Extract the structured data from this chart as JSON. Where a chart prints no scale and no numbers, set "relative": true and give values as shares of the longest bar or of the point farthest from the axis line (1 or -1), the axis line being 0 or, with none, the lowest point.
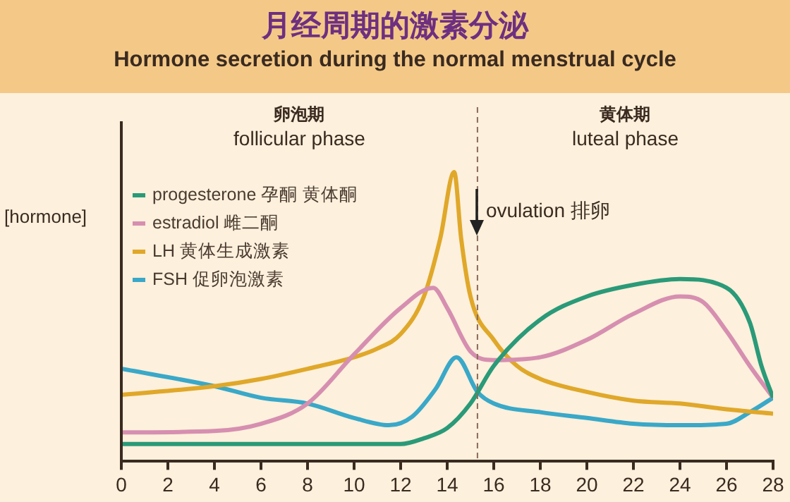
{
  "chart_data": {
    "type": "line",
    "title": "月经周期的激素分泌",
    "subtitle": "Hormone secretion during the normal menstrual cycle",
    "ylabel": "[hormone]",
    "relative": true,
    "xlim": [
      0,
      28
    ],
    "xticks": [
      0,
      2,
      4,
      6,
      8,
      10,
      12,
      14,
      16,
      18,
      20,
      22,
      24,
      26,
      28
    ],
    "marker": "none",
    "grid": false,
    "legend": "top left",
    "annotations": [
      "卵泡期\nfollicular phase",
      "黄体期\nluteal phase"
    ],
    "ref_lines": [
      {
        "axis": "x",
        "value": 15.3,
        "label": "ovulation 排卵",
        "line_style": "dashed",
        "color": "#8a6a5a"
      }
    ],
    "series": [
      {
        "name": "progesterone 孕酮 黄体酮",
        "color": "#2a9a78",
        "x": [
          0,
          4,
          8,
          12,
          13,
          14,
          15,
          16,
          18,
          20,
          22,
          24,
          26,
          27,
          27.5,
          28
        ],
        "values": [
          0.06,
          0.06,
          0.06,
          0.06,
          0.08,
          0.115,
          0.2,
          0.33,
          0.49,
          0.57,
          0.61,
          0.63,
          0.6,
          0.48,
          0.33,
          0.22
        ]
      },
      {
        "name": "estradiol 雌二酮",
        "color": "#d68fb0",
        "x": [
          0,
          4,
          6,
          8,
          10,
          12,
          13.4,
          14,
          15,
          16,
          18,
          20,
          22,
          24,
          25,
          26,
          27,
          28
        ],
        "values": [
          0.1,
          0.105,
          0.13,
          0.2,
          0.37,
          0.53,
          0.6,
          0.53,
          0.38,
          0.35,
          0.36,
          0.42,
          0.51,
          0.57,
          0.55,
          0.45,
          0.33,
          0.22
        ]
      },
      {
        "name": "LH 黄体生成激素",
        "color": "#e0a82a",
        "x": [
          0,
          4,
          6,
          8,
          10,
          11,
          12,
          13,
          13.7,
          14.3,
          14.6,
          15,
          16,
          17,
          18,
          20,
          22,
          24,
          26,
          28
        ],
        "values": [
          0.23,
          0.26,
          0.285,
          0.32,
          0.36,
          0.39,
          0.44,
          0.57,
          0.77,
          1,
          0.77,
          0.57,
          0.42,
          0.33,
          0.285,
          0.24,
          0.21,
          0.2,
          0.18,
          0.165
        ]
      },
      {
        "name": "FSH 促卵泡激素",
        "color": "#3aa8c8",
        "x": [
          0,
          4,
          6,
          8,
          10,
          11.5,
          12.5,
          13.5,
          14.4,
          15.3,
          16,
          18,
          20,
          22,
          24,
          26,
          27,
          28
        ],
        "values": [
          0.32,
          0.26,
          0.22,
          0.2,
          0.15,
          0.125,
          0.155,
          0.25,
          0.36,
          0.24,
          0.2,
          0.17,
          0.15,
          0.13,
          0.125,
          0.13,
          0.17,
          0.22
        ]
      }
    ]
  }
}
